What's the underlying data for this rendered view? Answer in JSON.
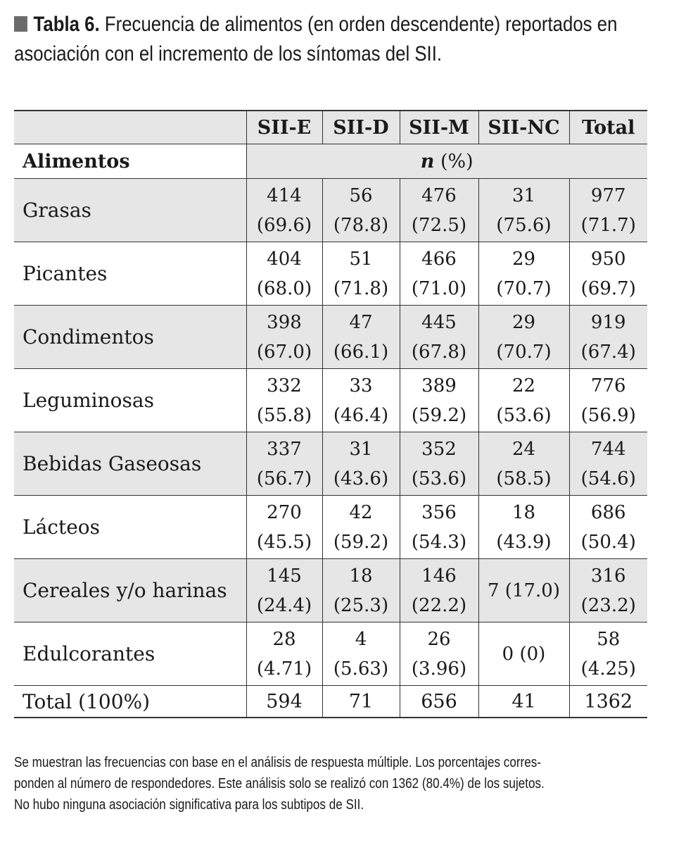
{
  "caption": {
    "label": "Tabla 6.",
    "line1_rest": "Frecuencia de alimentos (en orden descendente) reportados en",
    "line2": "asociación con el incremento de los síntomas del SII."
  },
  "table": {
    "columns": [
      "SII-E",
      "SII-D",
      "SII-M",
      "SII-NC",
      "Total"
    ],
    "row_header": "Alimentos",
    "unit_n": "n",
    "unit_pct": " (%)",
    "rows": [
      {
        "name": "Grasas",
        "cells": [
          [
            "414",
            "(69.6)"
          ],
          [
            "56",
            "(78.8)"
          ],
          [
            "476",
            "(72.5)"
          ],
          [
            "31",
            "(75.6)"
          ],
          [
            "977",
            "(71.7)"
          ]
        ]
      },
      {
        "name": "Picantes",
        "cells": [
          [
            "404",
            "(68.0)"
          ],
          [
            "51",
            "(71.8)"
          ],
          [
            "466",
            "(71.0)"
          ],
          [
            "29",
            "(70.7)"
          ],
          [
            "950",
            "(69.7)"
          ]
        ]
      },
      {
        "name": "Condimentos",
        "cells": [
          [
            "398",
            "(67.0)"
          ],
          [
            "47",
            "(66.1)"
          ],
          [
            "445",
            "(67.8)"
          ],
          [
            "29",
            "(70.7)"
          ],
          [
            "919",
            "(67.4)"
          ]
        ]
      },
      {
        "name": "Leguminosas",
        "cells": [
          [
            "332",
            "(55.8)"
          ],
          [
            "33",
            "(46.4)"
          ],
          [
            "389",
            "(59.2)"
          ],
          [
            "22",
            "(53.6)"
          ],
          [
            "776",
            "(56.9)"
          ]
        ]
      },
      {
        "name": "Bebidas Gaseosas",
        "cells": [
          [
            "337",
            "(56.7)"
          ],
          [
            "31",
            "(43.6)"
          ],
          [
            "352",
            "(53.6)"
          ],
          [
            "24",
            "(58.5)"
          ],
          [
            "744",
            "(54.6)"
          ]
        ]
      },
      {
        "name": "Lácteos",
        "cells": [
          [
            "270",
            "(45.5)"
          ],
          [
            "42",
            "(59.2)"
          ],
          [
            "356",
            "(54.3)"
          ],
          [
            "18",
            "(43.9)"
          ],
          [
            "686",
            "(50.4)"
          ]
        ]
      },
      {
        "name": "Cereales y/o harinas",
        "cells": [
          [
            "145",
            "(24.4)"
          ],
          [
            "18",
            "(25.3)"
          ],
          [
            "146",
            "(22.2)"
          ],
          [
            "7 (17.0)",
            ""
          ],
          [
            "316",
            "(23.2)"
          ]
        ]
      },
      {
        "name": "Edulcorantes",
        "cells": [
          [
            "28",
            "(4.71)"
          ],
          [
            "4",
            "(5.63)"
          ],
          [
            "26",
            "(3.96)"
          ],
          [
            "0 (0)",
            ""
          ],
          [
            "58",
            "(4.25)"
          ]
        ]
      }
    ],
    "total_row": {
      "name": "Total (100%)",
      "cells": [
        "594",
        "71",
        "656",
        "41",
        "1362"
      ]
    }
  },
  "note": {
    "line1": "Se muestran las frecuencias con base en el análisis de respuesta múltiple. Los porcentajes corres-",
    "line2": "ponden al número de respondedores.  Este análisis solo se realizó con 1362 (80.4%) de los sujetos.",
    "line3": "No hubo ninguna asociación significativa para los subtipos de SII."
  }
}
